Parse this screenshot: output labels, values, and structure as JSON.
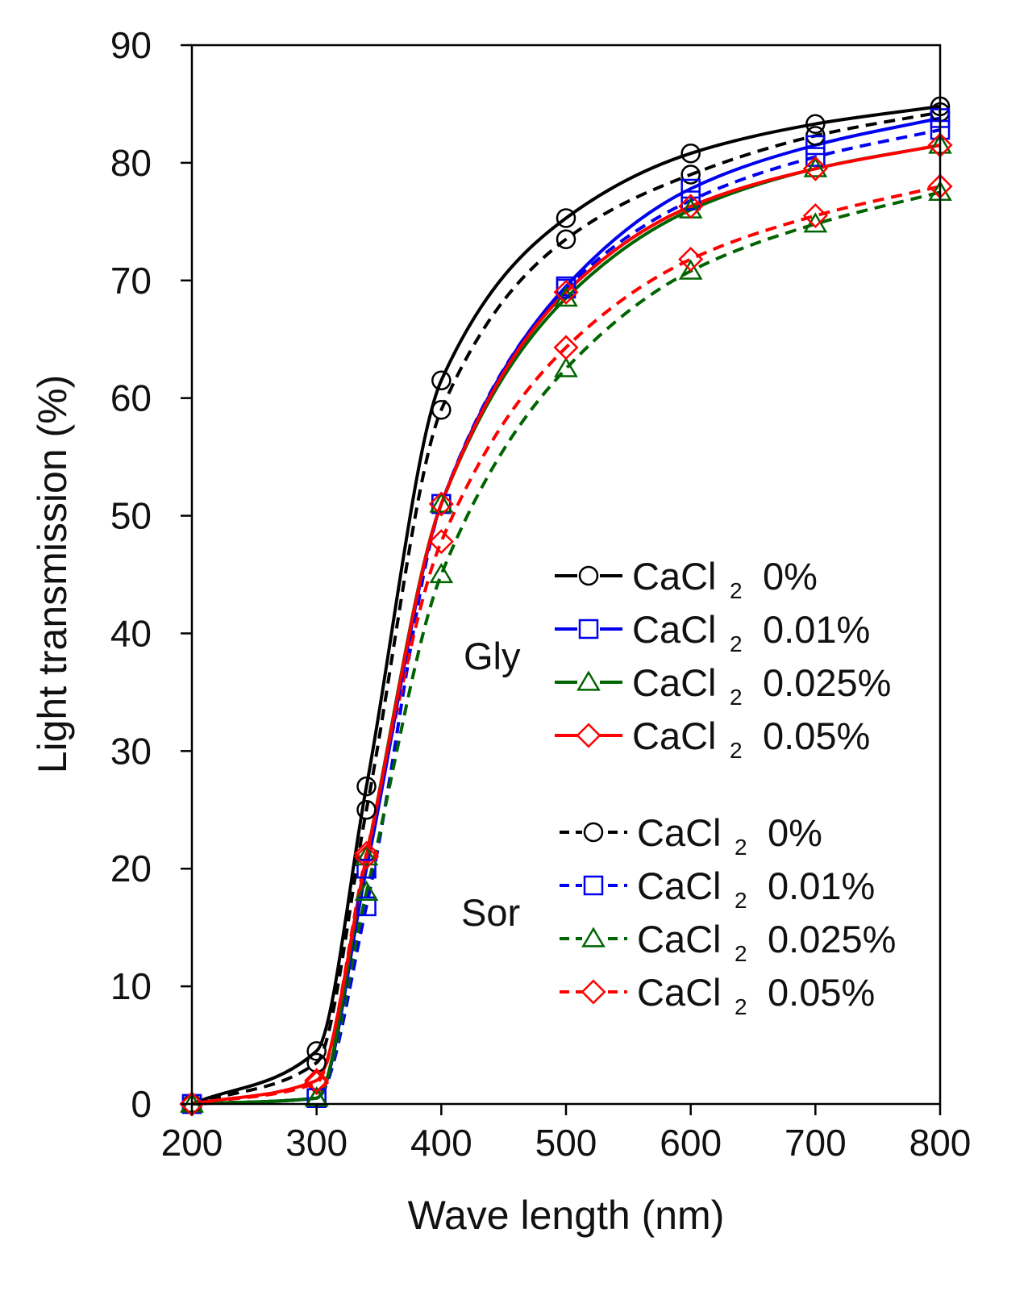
{
  "chart_data": {
    "type": "line",
    "title": "",
    "xlabel": "Wave length (nm)",
    "ylabel": "Light transmission (%)",
    "xlim": [
      200,
      800
    ],
    "ylim": [
      0,
      90
    ],
    "x_ticks": [
      "200",
      "300",
      "400",
      "500",
      "600",
      "700",
      "800"
    ],
    "y_ticks": [
      "0",
      "10",
      "20",
      "30",
      "40",
      "50",
      "60",
      "70",
      "80",
      "90"
    ],
    "grid": false,
    "x": [
      200,
      300,
      340,
      400,
      500,
      600,
      700,
      800
    ],
    "legend": {
      "placement": "center-right",
      "groups": [
        {
          "label": "Gly",
          "entries": [
            {
              "name": "CaCl",
              "sub": "2",
              "conc": "0%",
              "series": 0
            },
            {
              "name": "CaCl",
              "sub": "2",
              "conc": "0.01%",
              "series": 1
            },
            {
              "name": "CaCl",
              "sub": "2",
              "conc": "0.025%",
              "series": 2
            },
            {
              "name": "CaCl",
              "sub": "2",
              "conc": "0.05%",
              "series": 3
            }
          ]
        },
        {
          "label": "Sor",
          "entries": [
            {
              "name": "CaCl",
              "sub": "2",
              "conc": "0%",
              "series": 4
            },
            {
              "name": "CaCl",
              "sub": "2",
              "conc": "0.01%",
              "series": 5
            },
            {
              "name": "CaCl",
              "sub": "2",
              "conc": "0.025%",
              "series": 6
            },
            {
              "name": "CaCl",
              "sub": "2",
              "conc": "0.05%",
              "series": 7
            }
          ]
        }
      ]
    },
    "series": [
      {
        "name": "Gly CaCl2 0%",
        "group": "Gly",
        "color": "#000000",
        "dash": false,
        "marker": "circle",
        "values": [
          0,
          4.5,
          27,
          61.5,
          75.3,
          80.8,
          83.3,
          84.8
        ]
      },
      {
        "name": "Gly CaCl2 0.01%",
        "group": "Gly",
        "color": "#0000ee",
        "dash": false,
        "marker": "square",
        "values": [
          0,
          0.5,
          20,
          51,
          69.5,
          77.8,
          81.5,
          83.8
        ]
      },
      {
        "name": "Gly CaCl2 0.025%",
        "group": "Gly",
        "color": "#006400",
        "dash": false,
        "marker": "triangle",
        "values": [
          0,
          0.5,
          21,
          51,
          68.5,
          76,
          79.5,
          81.5
        ]
      },
      {
        "name": "Gly CaCl2 0.05%",
        "group": "Gly",
        "color": "#ff0000",
        "dash": false,
        "marker": "diamond",
        "values": [
          0,
          2,
          21,
          51,
          69,
          76.3,
          79.5,
          81.5
        ]
      },
      {
        "name": "Sor CaCl2 0%",
        "group": "Sor",
        "color": "#000000",
        "dash": true,
        "marker": "circle",
        "values": [
          0,
          3.5,
          25,
          59,
          73.5,
          79,
          82.3,
          84.3
        ]
      },
      {
        "name": "Sor CaCl2 0.01%",
        "group": "Sor",
        "color": "#0000ee",
        "dash": true,
        "marker": "square",
        "values": [
          0,
          0.5,
          16.8,
          51,
          69.3,
          76.8,
          80.5,
          82.8
        ]
      },
      {
        "name": "Sor CaCl2 0.025%",
        "group": "Sor",
        "color": "#006400",
        "dash": true,
        "marker": "triangle",
        "values": [
          0,
          0.5,
          18,
          45,
          62.5,
          70.8,
          74.8,
          77.5
        ]
      },
      {
        "name": "Sor CaCl2 0.05%",
        "group": "Sor",
        "color": "#ff0000",
        "dash": true,
        "marker": "diamond",
        "values": [
          0,
          1.8,
          21.3,
          47.8,
          64.3,
          71.8,
          75.5,
          78
        ]
      }
    ]
  }
}
